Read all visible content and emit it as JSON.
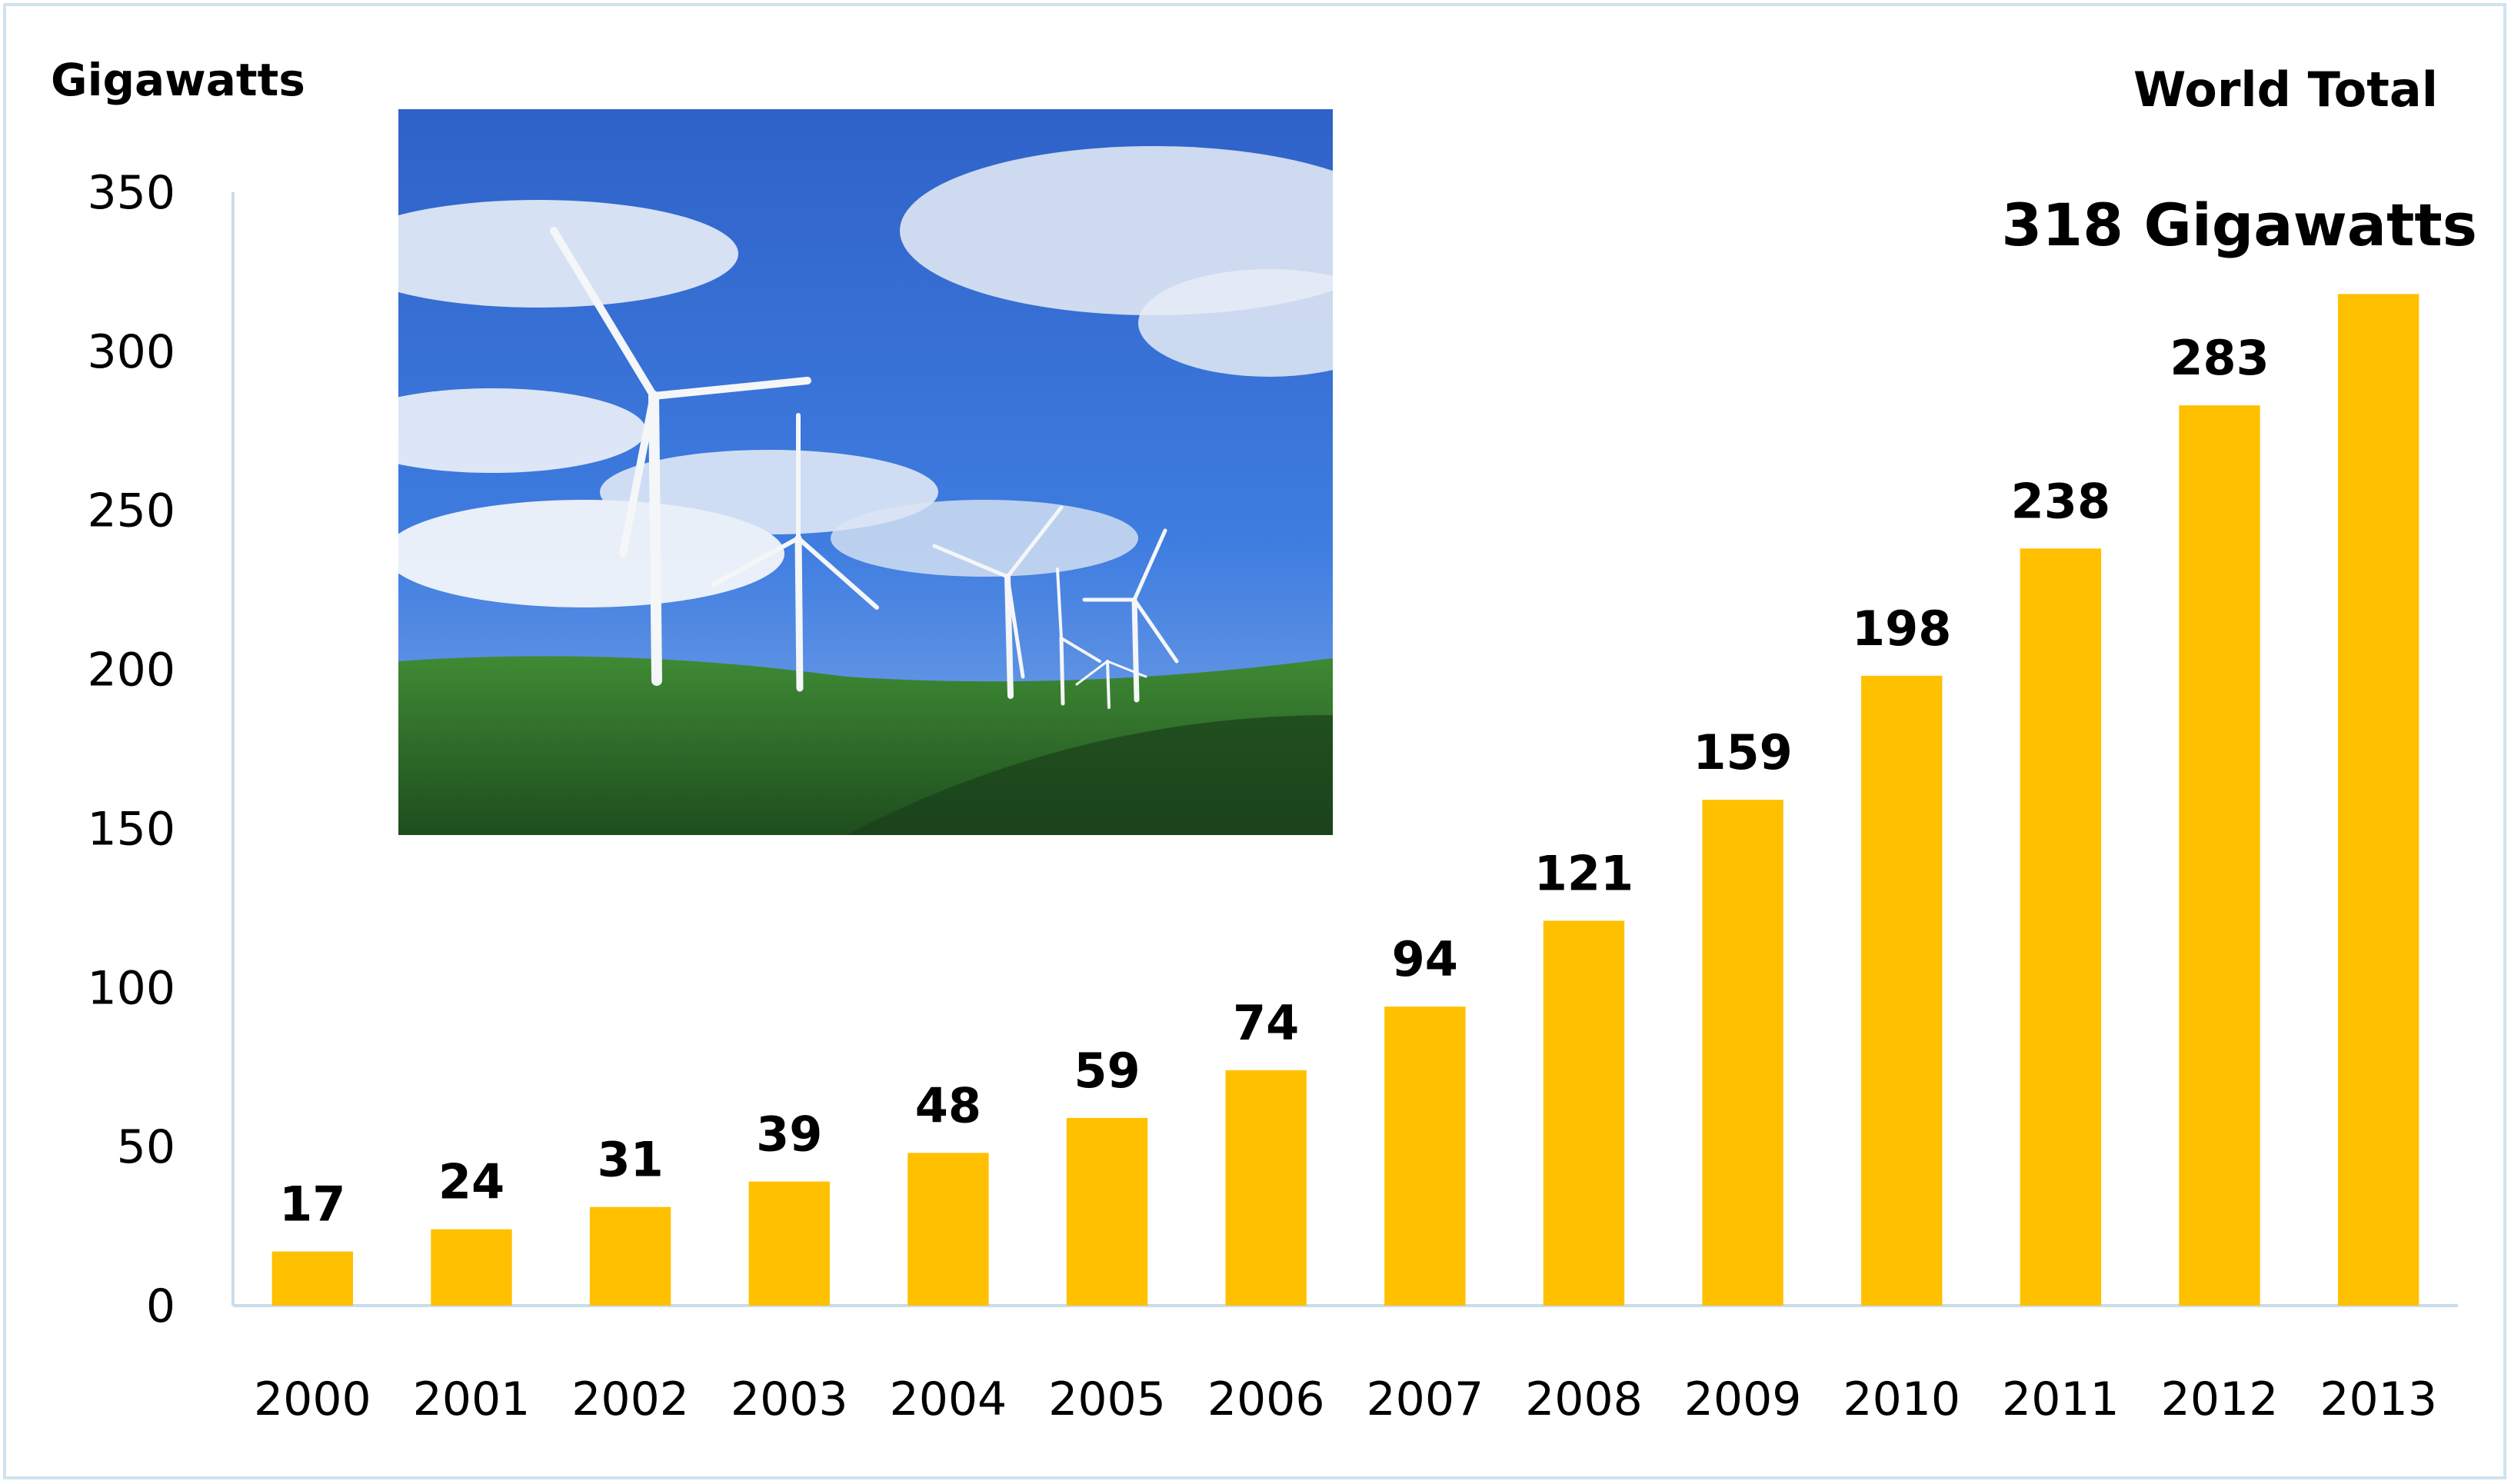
{
  "chart_data": {
    "type": "bar",
    "ylabel": "Gigawatts",
    "annotation_heading": "World Total",
    "annotation_value": "318 Gigawatts",
    "categories": [
      "2000",
      "2001",
      "2002",
      "2003",
      "2004",
      "2005",
      "2006",
      "2007",
      "2008",
      "2009",
      "2010",
      "2011",
      "2012",
      "2013"
    ],
    "values": [
      17,
      24,
      31,
      39,
      48,
      59,
      74,
      94,
      121,
      159,
      198,
      238,
      283,
      318
    ],
    "ylim": [
      0,
      350
    ],
    "yticks": [
      0,
      50,
      100,
      150,
      200,
      250,
      300,
      350
    ],
    "bar_color": "#FFC000",
    "axis_color": "#c9dcea",
    "grid": false,
    "legend": "none",
    "inset_photo": "wind-turbines-on-green-hills"
  }
}
